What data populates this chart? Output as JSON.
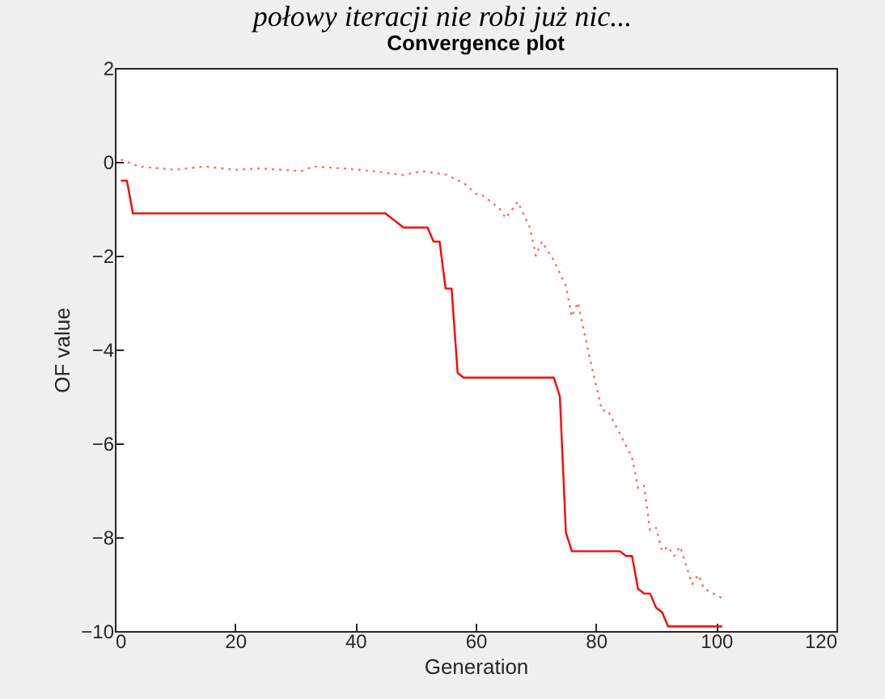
{
  "chart_data": {
    "type": "line",
    "title": "Convergence plot",
    "xlabel": "Generation",
    "ylabel": "OF value",
    "annotations": [
      "połowy iteracji nie robi już nic..."
    ],
    "xlim": [
      0,
      120
    ],
    "xticks": [
      0,
      20,
      40,
      60,
      80,
      100,
      120
    ],
    "ylim": [
      -10,
      2
    ],
    "yticks": [
      -10,
      -8,
      -6,
      -4,
      -2,
      0,
      2
    ],
    "grid": false,
    "marker": "none",
    "series": [
      {
        "color": "#ff0000",
        "line_style": "solid",
        "x": [
          1,
          2,
          3,
          45,
          46,
          48,
          52,
          53,
          54,
          55,
          56,
          57,
          58,
          73,
          74,
          75,
          76,
          84,
          85,
          86,
          87,
          88,
          89,
          90,
          91,
          92,
          101
        ],
        "values": [
          -0.4,
          -0.4,
          -1.1,
          -1.1,
          -1.2,
          -1.4,
          -1.4,
          -1.7,
          -1.7,
          -2.7,
          -2.7,
          -4.5,
          -4.6,
          -4.6,
          -5,
          -7.9,
          -8.3,
          -8.3,
          -8.4,
          -8.4,
          -9.1,
          -9.2,
          -9.2,
          -9.5,
          -9.6,
          -9.9,
          -9.9
        ]
      },
      {
        "color": "#ff7070",
        "line_style": "dotted",
        "x": [
          1,
          4,
          10,
          15,
          20,
          24,
          31,
          33,
          39,
          43,
          48,
          51,
          55,
          58,
          60,
          61,
          64,
          65,
          67,
          69,
          70,
          71,
          73,
          75,
          76,
          77,
          79,
          81,
          82,
          86,
          87,
          88,
          89,
          90,
          91,
          92,
          93,
          94,
          96,
          97,
          98,
          101
        ],
        "values": [
          0.05,
          -0.1,
          -0.17,
          -0.1,
          -0.17,
          -0.14,
          -0.2,
          -0.1,
          -0.15,
          -0.2,
          -0.28,
          -0.2,
          -0.27,
          -0.45,
          -0.68,
          -0.7,
          -1.0,
          -1.2,
          -0.85,
          -1.4,
          -2.0,
          -1.7,
          -2.1,
          -2.65,
          -3.3,
          -3.0,
          -4.2,
          -5.3,
          -5.3,
          -6.3,
          -6.95,
          -6.9,
          -7.85,
          -7.8,
          -8.3,
          -8.2,
          -8.4,
          -8.2,
          -9.0,
          -8.8,
          -9.1,
          -9.3
        ]
      }
    ]
  }
}
